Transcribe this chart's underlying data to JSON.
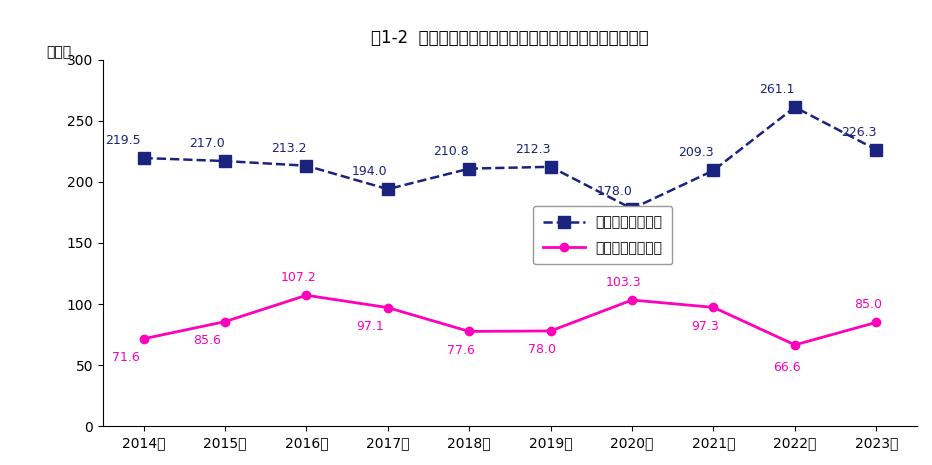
{
  "title": "図1-2  貯蓄年収比と負債年収比の推移（二人以上の世帯）",
  "ylabel": "（％）",
  "years": [
    "2014年",
    "2015年",
    "2016年",
    "2017年",
    "2018年",
    "2019年",
    "2020年",
    "2021年",
    "2022年",
    "2023年"
  ],
  "savings_ratio": [
    219.5,
    217.0,
    213.2,
    194.0,
    210.8,
    212.3,
    178.0,
    209.3,
    261.1,
    226.3
  ],
  "debt_ratio": [
    71.6,
    85.6,
    107.2,
    97.1,
    77.6,
    78.0,
    103.3,
    97.3,
    66.6,
    85.0
  ],
  "savings_color": "#1a237e",
  "debt_color": "#ff00bb",
  "savings_label": "貯蓄年収比（％）",
  "debt_label": "負債年収比（％）",
  "ylim": [
    0,
    300
  ],
  "yticks": [
    0,
    50,
    100,
    150,
    200,
    250,
    300
  ],
  "background_color": "#ffffff",
  "title_fontsize": 12,
  "axis_fontsize": 10,
  "label_fontsize": 9,
  "savings_label_offsets_x": [
    -0.25,
    -0.22,
    -0.22,
    -0.22,
    -0.22,
    -0.22,
    -0.22,
    -0.22,
    -0.22,
    -0.22
  ],
  "savings_label_offsets_y": [
    9,
    9,
    9,
    9,
    9,
    9,
    9,
    9,
    9,
    9
  ],
  "debt_label_offsets_x": [
    -0.22,
    -0.22,
    -0.1,
    -0.22,
    -0.1,
    -0.1,
    -0.1,
    -0.1,
    -0.1,
    -0.1
  ],
  "debt_label_offsets_y": [
    -10,
    -10,
    9,
    -10,
    -10,
    -10,
    9,
    -10,
    -13,
    9
  ]
}
